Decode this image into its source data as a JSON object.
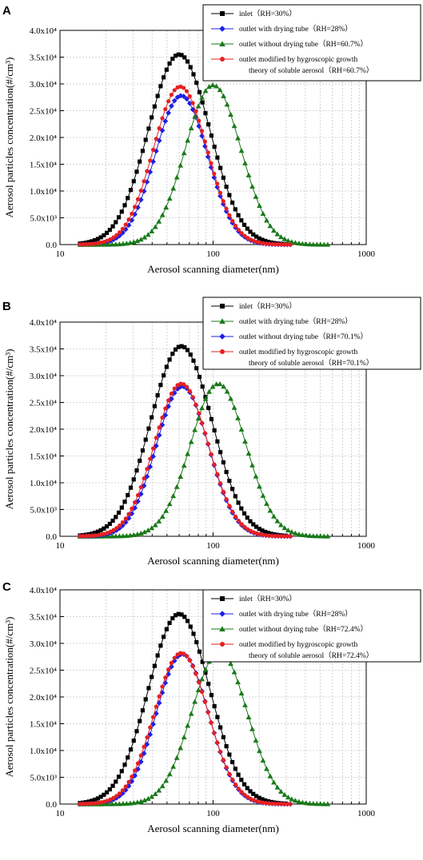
{
  "colors": {
    "inlet": "#000000",
    "with_tube": "#1f1fe6",
    "without_tube": "#1a7a1a",
    "modified": "#e62020",
    "grid": "#c8c8c8"
  },
  "chart_data": [
    {
      "panel": "A",
      "type": "scatter",
      "xlabel": "Aerosol scanning diameter(nm)",
      "ylabel": "Aerosol particles concentration(#/cm³)",
      "xscale": "log",
      "xlim": [
        10,
        1000
      ],
      "ylim": [
        0,
        40000
      ],
      "xticks": [
        10,
        100,
        1000
      ],
      "xtick_labels": [
        "10",
        "100",
        "1000"
      ],
      "yticks": [
        0,
        5000,
        10000,
        15000,
        20000,
        25000,
        30000,
        35000,
        40000
      ],
      "ytick_labels": [
        "0.0",
        "5.0x10³",
        "1.0x10⁴",
        "1.5x10⁴",
        "2.0x10⁴",
        "2.5x10⁴",
        "3.0x10⁴",
        "3.5x10⁴",
        "4.0x10⁴"
      ],
      "grid": true,
      "legend_position": "top-right",
      "series": [
        {
          "name": "inlet（RH=30%）",
          "marker": "square",
          "color": "#000000",
          "peak_x": 60,
          "peak_y": 35500,
          "sigma": 0.2,
          "x_range": [
            13.5,
            300
          ]
        },
        {
          "name": "outlet with drying tube（RH=28%）",
          "marker": "diamond",
          "color": "#1f1fe6",
          "peak_x": 62,
          "peak_y": 27800,
          "sigma": 0.17,
          "x_range": [
            13.5,
            320
          ]
        },
        {
          "name": "outlet without drying tube（RH=60.7%）",
          "marker": "triangle",
          "color": "#1a7a1a",
          "peak_x": 100,
          "peak_y": 29800,
          "sigma": 0.18,
          "x_range": [
            13.5,
            560
          ]
        },
        {
          "name": "outlet modified by hygroscopic growth theory of soluble aerosol（RH=60.7%）",
          "marker": "circle",
          "color": "#e62020",
          "peak_x": 61,
          "peak_y": 29500,
          "sigma": 0.175,
          "x_range": [
            13.5,
            320
          ]
        }
      ]
    },
    {
      "panel": "B",
      "type": "scatter",
      "xlabel": "Aerosol scanning diameter(nm)",
      "ylabel": "Aerosol particles concentration(#/cm³)",
      "xscale": "log",
      "xlim": [
        10,
        1000
      ],
      "ylim": [
        0,
        40000
      ],
      "xticks": [
        10,
        100,
        1000
      ],
      "xtick_labels": [
        "10",
        "100",
        "1000"
      ],
      "yticks": [
        0,
        5000,
        10000,
        15000,
        20000,
        25000,
        30000,
        35000,
        40000
      ],
      "ytick_labels": [
        "0.0",
        "5.0x10³",
        "1.0x10⁴",
        "1.5x10⁴",
        "2.0x10⁴",
        "2.5x10⁴",
        "3.0x10⁴",
        "3.5x10⁴",
        "4.0x10⁴"
      ],
      "grid": true,
      "legend_position": "top-right",
      "series": [
        {
          "name": "inlet（RH=30%）",
          "marker": "square",
          "color": "#000000",
          "peak_x": 62,
          "peak_y": 35500,
          "sigma": 0.2,
          "x_range": [
            13.5,
            300
          ]
        },
        {
          "name": "outlet with drying tube（RH=28%）",
          "marker": "triangle",
          "color": "#1a7a1a",
          "peak_x": 108,
          "peak_y": 28500,
          "sigma": 0.18,
          "x_range": [
            13.5,
            560
          ]
        },
        {
          "name": "outlet without drying tube（RH=70.1%）",
          "marker": "diamond",
          "color": "#1f1fe6",
          "peak_x": 63,
          "peak_y": 28000,
          "sigma": 0.17,
          "x_range": [
            13.5,
            320
          ]
        },
        {
          "name": "outlet modified by hygroscopic growth theory of soluble aerosol（RH=70.1%）",
          "marker": "circle",
          "color": "#e62020",
          "peak_x": 62,
          "peak_y": 28500,
          "sigma": 0.175,
          "x_range": [
            13.5,
            320
          ]
        }
      ]
    },
    {
      "panel": "C",
      "type": "scatter",
      "xlabel": "Aerosol scanning diameter(nm)",
      "ylabel": "Aerosol particles concentration(#/cm³)",
      "xscale": "log",
      "xlim": [
        10,
        1000
      ],
      "ylim": [
        0,
        40000
      ],
      "xticks": [
        10,
        100,
        1000
      ],
      "xtick_labels": [
        "10",
        "100",
        "1000"
      ],
      "yticks": [
        0,
        5000,
        10000,
        15000,
        20000,
        25000,
        30000,
        35000,
        40000
      ],
      "ytick_labels": [
        "0.0",
        "5.0x10³",
        "1.0x10⁴",
        "1.5x10⁴",
        "2.0x10⁴",
        "2.5x10⁴",
        "3.0x10⁴",
        "3.5x10⁴",
        "4.0x10⁴"
      ],
      "grid": true,
      "legend_position": "top-right",
      "series": [
        {
          "name": "inlet（RH=30%）",
          "marker": "square",
          "color": "#000000",
          "peak_x": 60,
          "peak_y": 35500,
          "sigma": 0.2,
          "x_range": [
            13.5,
            300
          ]
        },
        {
          "name": "outlet with drying tube（RH=28%）",
          "marker": "diamond",
          "color": "#1f1fe6",
          "peak_x": 63,
          "peak_y": 28000,
          "sigma": 0.17,
          "x_range": [
            13.5,
            320
          ]
        },
        {
          "name": "outlet without drying tube（RH=72.4%）",
          "marker": "triangle",
          "color": "#1a7a1a",
          "peak_x": 110,
          "peak_y": 28500,
          "sigma": 0.18,
          "x_range": [
            13.5,
            560
          ]
        },
        {
          "name": "outlet modified by hygroscopic growth theory of soluble aerosol（RH=72.4%）",
          "marker": "circle",
          "color": "#e62020",
          "peak_x": 62,
          "peak_y": 28200,
          "sigma": 0.175,
          "x_range": [
            13.5,
            320
          ]
        }
      ]
    }
  ]
}
